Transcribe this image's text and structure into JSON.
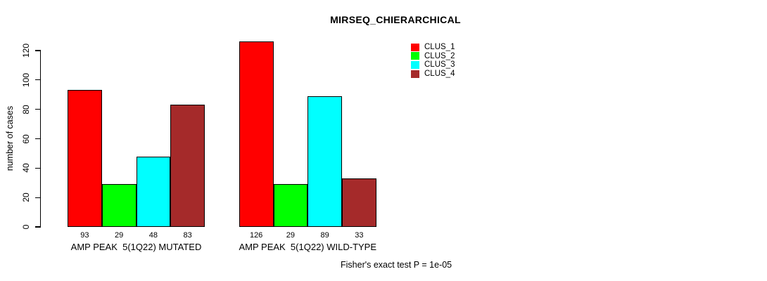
{
  "chart_data": {
    "type": "bar",
    "title": "MIRSEQ_CHIERARCHICAL",
    "ylabel": "number of cases",
    "xlabel": "",
    "ylim": [
      0,
      120
    ],
    "yticks": [
      0,
      20,
      40,
      60,
      80,
      100,
      120
    ],
    "grid": false,
    "legend_position": "top-right",
    "categories": [
      "AMP PEAK  5(1Q22) MUTATED",
      "AMP PEAK  5(1Q22) WILD-TYPE"
    ],
    "series": [
      {
        "name": "CLUS_1",
        "color": "#FF0000",
        "values": [
          93,
          126
        ]
      },
      {
        "name": "CLUS_2",
        "color": "#00FF00",
        "values": [
          29,
          29
        ]
      },
      {
        "name": "CLUS_3",
        "color": "#00FFFF",
        "values": [
          48,
          89
        ]
      },
      {
        "name": "CLUS_4",
        "color": "#A52A2A",
        "values": [
          83,
          33
        ]
      }
    ],
    "bar_value_labels": true,
    "footnote": "Fisher's exact test P = 1e-05"
  }
}
